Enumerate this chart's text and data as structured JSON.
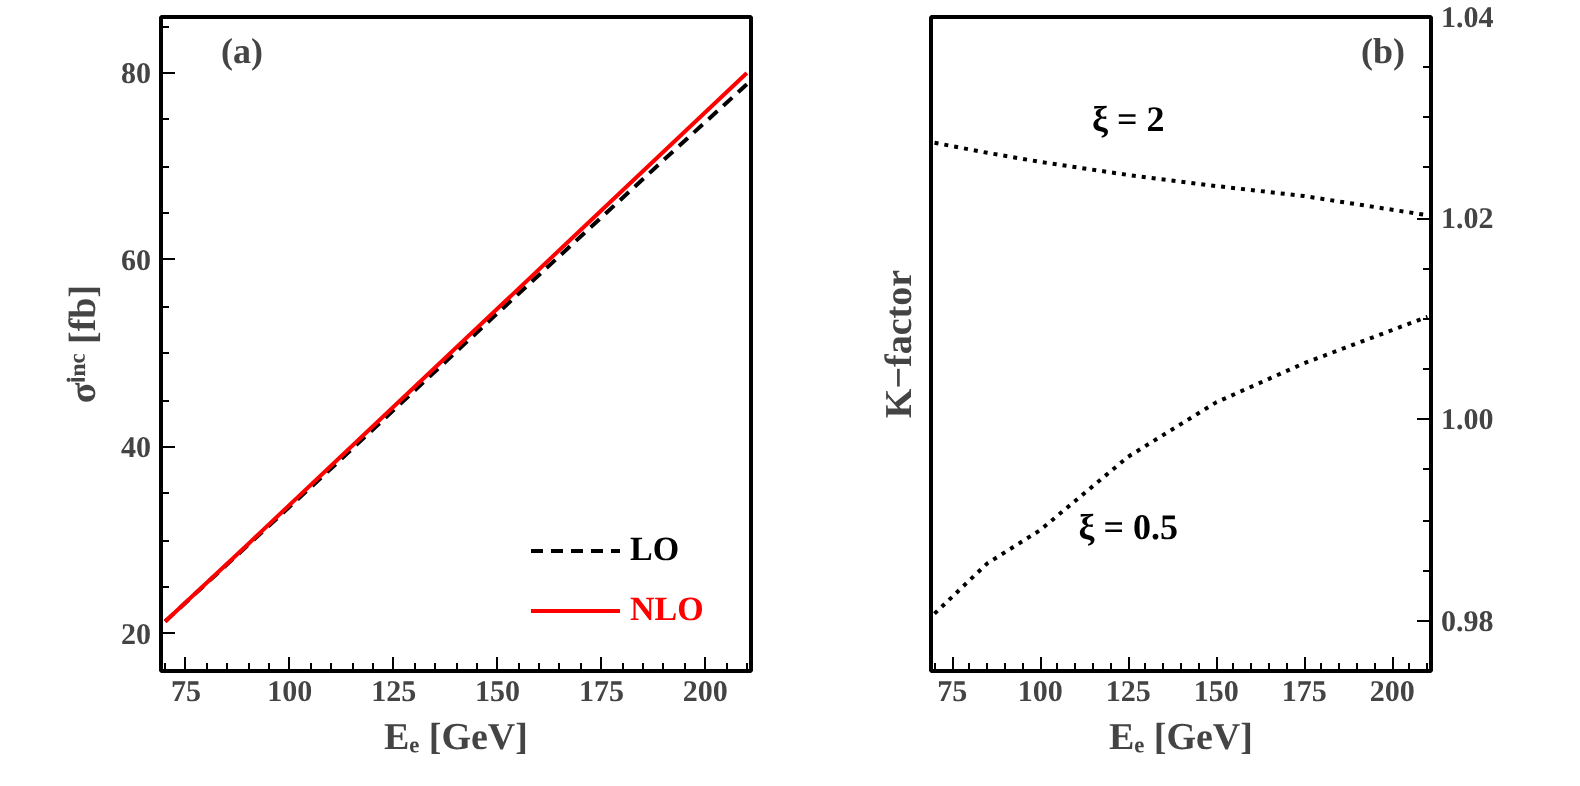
{
  "chart_data": [
    {
      "type": "line",
      "xlabel": "Eₑ [GeV]",
      "ylabel": "σⁱⁿᶜ [fb]",
      "annotations": [
        "(a)"
      ],
      "x": [
        70,
        90,
        110,
        130,
        150,
        170,
        190,
        210
      ],
      "xlim": [
        69,
        211
      ],
      "xticks": [
        75,
        100,
        125,
        150,
        175,
        200
      ],
      "ylim": [
        16,
        86
      ],
      "yticks": [
        20,
        40,
        60,
        80
      ],
      "legend": "bottom right",
      "grid": false,
      "series": [
        {
          "name": "LO",
          "color": "#000000",
          "line_style": "dashed",
          "values": [
            21.3,
            29.5,
            37.7,
            46.0,
            54.3,
            62.5,
            70.7,
            78.8
          ]
        },
        {
          "name": "NLO",
          "color": "#ff0000",
          "line_style": "solid",
          "values": [
            21.3,
            29.6,
            38.0,
            46.4,
            54.8,
            63.2,
            71.6,
            80.0
          ]
        }
      ]
    },
    {
      "type": "line",
      "xlabel": "Eₑ [GeV]",
      "ylabel": "K−factor",
      "annotations": [
        "(b)"
      ],
      "x": [
        70,
        85,
        100,
        125,
        150,
        175,
        210
      ],
      "xlim": [
        69,
        211
      ],
      "xticks": [
        75,
        100,
        125,
        150,
        175,
        200
      ],
      "ylim": [
        0.975,
        1.04
      ],
      "yticks": [
        0.98,
        {
          "value": 1.0,
          "label": "1.00"
        },
        1.02,
        1.04
      ],
      "grid": false,
      "series": [
        {
          "name": "ξ = 2",
          "color": "#000000",
          "line_style": "dotted",
          "values": [
            1.0275,
            1.0265,
            1.0256,
            1.0243,
            1.0232,
            1.0222,
            1.0203
          ]
        },
        {
          "name": "ξ = 0.5",
          "color": "#000000",
          "line_style": "dotted",
          "values": [
            0.9807,
            0.9857,
            0.989,
            0.9963,
            1.0017,
            1.0056,
            1.0102
          ]
        }
      ]
    }
  ]
}
